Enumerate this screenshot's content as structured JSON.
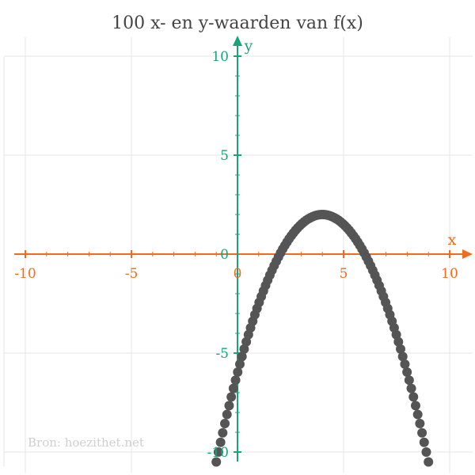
{
  "chart_data": {
    "type": "scatter",
    "title": "100 x- en y-waarden van f(x)",
    "xlabel": "x",
    "ylabel": "y",
    "xlim": [
      -10,
      10
    ],
    "ylim": [
      -10,
      10
    ],
    "x_ticks": [
      "-10",
      "-5",
      "0",
      "5",
      "10"
    ],
    "y_ticks": [
      "10",
      "5",
      "0",
      "-5",
      "-10"
    ],
    "grid": true,
    "source": "Bron: hoezithet.net",
    "colors": {
      "x_axis": "#f26b1d",
      "y_axis": "#1aa37a",
      "points": "#555555",
      "grid": "#e6e6e6"
    },
    "series": [
      {
        "x_range": [
          -1,
          9
        ],
        "point_count": 100,
        "values": [
          [
            -1,
            -10.5
          ],
          [
            0,
            -6
          ],
          [
            1,
            -2.5
          ],
          [
            2,
            0
          ],
          [
            3,
            1.5
          ],
          [
            4,
            2
          ],
          [
            5,
            1.5
          ],
          [
            6,
            0
          ],
          [
            7,
            -2.5
          ],
          [
            8,
            -6
          ],
          [
            9,
            -10.5
          ]
        ]
      }
    ]
  }
}
